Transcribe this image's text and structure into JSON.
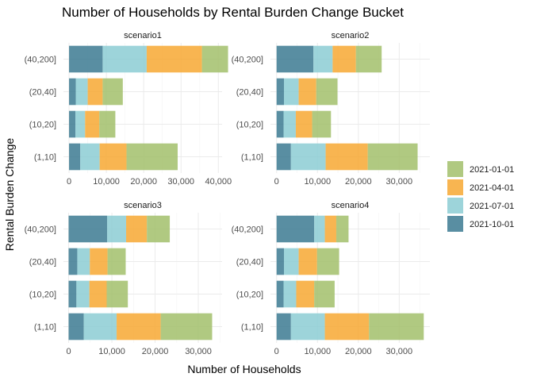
{
  "chart_data": {
    "type": "bar",
    "orientation": "horizontal",
    "stacked": true,
    "title": "Number of Households by Rental Burden Change Bucket",
    "xlabel": "Number of Households",
    "ylabel": "Rental Burden Change",
    "categories": [
      "(1,10]",
      "(10,20]",
      "(20,40]",
      "(40,200]"
    ],
    "legend": {
      "position": "right",
      "items": [
        {
          "name": "2021-01-01",
          "color": "#a2c06b"
        },
        {
          "name": "2021-04-01",
          "color": "#f7a832"
        },
        {
          "name": "2021-07-01",
          "color": "#8ccdd3"
        },
        {
          "name": "2021-10-01",
          "color": "#3c7a92"
        }
      ]
    },
    "stack_order": [
      "2021-10-01",
      "2021-07-01",
      "2021-04-01",
      "2021-01-01"
    ],
    "grid": true,
    "panels": [
      {
        "name": "scenario1",
        "xlim": [
          -1500,
          41000
        ],
        "xticks": [
          0,
          10000,
          20000,
          30000,
          40000
        ],
        "xtick_labels": [
          "0",
          "10,000",
          "20,000",
          "30,000",
          "40,000"
        ],
        "series": [
          {
            "name": "2021-10-01",
            "values": [
              3000,
              1700,
              1800,
              9000
            ]
          },
          {
            "name": "2021-07-01",
            "values": [
              5200,
              2600,
              3200,
              11800
            ]
          },
          {
            "name": "2021-04-01",
            "values": [
              7200,
              3800,
              4000,
              14800
            ]
          },
          {
            "name": "2021-01-01",
            "values": [
              13700,
              4300,
              5400,
              7000
            ]
          }
        ]
      },
      {
        "name": "scenario2",
        "xlim": [
          -1500,
          37500
        ],
        "xticks": [
          0,
          10000,
          20000,
          30000
        ],
        "xtick_labels": [
          "0",
          "10,000",
          "20,000",
          "30,000"
        ],
        "series": [
          {
            "name": "2021-10-01",
            "values": [
              3500,
              1700,
              1800,
              9000
            ]
          },
          {
            "name": "2021-07-01",
            "values": [
              8500,
              3000,
              3600,
              4700
            ]
          },
          {
            "name": "2021-04-01",
            "values": [
              10300,
              4000,
              4300,
              5700
            ]
          },
          {
            "name": "2021-01-01",
            "values": [
              12200,
              4600,
              5200,
              6300
            ]
          }
        ]
      },
      {
        "name": "scenario3",
        "xlim": [
          -1200,
          35500
        ],
        "xticks": [
          0,
          10000,
          20000,
          30000
        ],
        "xtick_labels": [
          "0",
          "10,000",
          "20,000",
          "30,000"
        ],
        "series": [
          {
            "name": "2021-10-01",
            "values": [
              3500,
              1800,
              2000,
              8900
            ]
          },
          {
            "name": "2021-07-01",
            "values": [
              7600,
              3000,
              2900,
              4400
            ]
          },
          {
            "name": "2021-04-01",
            "values": [
              10200,
              4000,
              4100,
              4800
            ]
          },
          {
            "name": "2021-01-01",
            "values": [
              11900,
              4900,
              4200,
              5300
            ]
          }
        ]
      },
      {
        "name": "scenario4",
        "xlim": [
          -1500,
          37500
        ],
        "xticks": [
          0,
          10000,
          20000,
          30000
        ],
        "xtick_labels": [
          "0",
          "10,000",
          "20,000",
          "30,000"
        ],
        "series": [
          {
            "name": "2021-10-01",
            "values": [
              3500,
              1700,
              1800,
              9200
            ]
          },
          {
            "name": "2021-07-01",
            "values": [
              8300,
              3100,
              3600,
              2600
            ]
          },
          {
            "name": "2021-04-01",
            "values": [
              10800,
              4400,
              4500,
              2800
            ]
          },
          {
            "name": "2021-01-01",
            "values": [
              13400,
              5000,
              5400,
              3000
            ]
          }
        ]
      }
    ]
  }
}
